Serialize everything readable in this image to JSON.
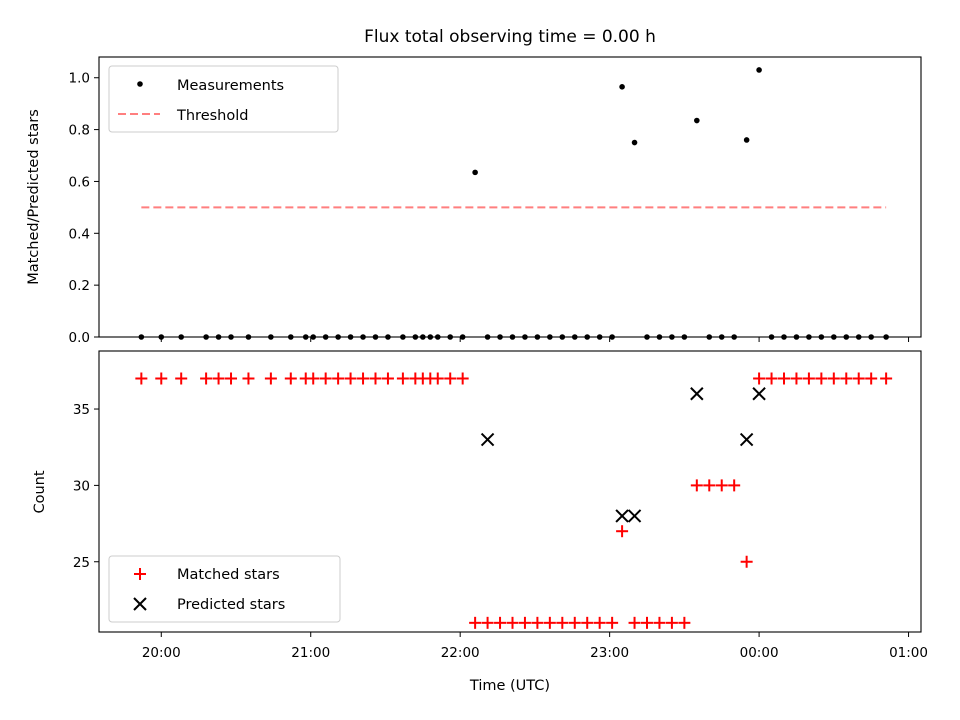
{
  "title": "Flux total observing time = 0.00 h",
  "chart_data": [
    {
      "type": "scatter",
      "ylabel": "Matched/Predicted stars",
      "ylim": [
        0.0,
        1.08
      ],
      "xlim": [
        "19:35",
        "01:05"
      ],
      "yticks": [
        {
          "value": 0.0,
          "label": "0.0"
        },
        {
          "value": 0.2,
          "label": "0.2"
        },
        {
          "value": 0.4,
          "label": "0.4"
        },
        {
          "value": 0.6,
          "label": "0.6"
        },
        {
          "value": 0.8,
          "label": "0.8"
        },
        {
          "value": 1.0,
          "label": "1.0"
        }
      ],
      "legend": {
        "placement": "upper-left",
        "entries": [
          {
            "label": "Measurements",
            "marker": "dot",
            "color": "#000000"
          },
          {
            "label": "Threshold",
            "marker": "dashed-line",
            "color": "#ff7f7f"
          }
        ]
      },
      "threshold": {
        "value": 0.5,
        "x_start": "19:52",
        "x_end": "00:51",
        "color": "#ff7f7f"
      },
      "series": [
        {
          "name": "Measurements",
          "color": "#000000",
          "points": [
            [
              "19:52",
              0
            ],
            [
              "20:00",
              0
            ],
            [
              "20:08",
              0
            ],
            [
              "20:18",
              0
            ],
            [
              "20:23",
              0
            ],
            [
              "20:28",
              0
            ],
            [
              "20:35",
              0
            ],
            [
              "20:44",
              0
            ],
            [
              "20:52",
              0
            ],
            [
              "20:58",
              0
            ],
            [
              "21:01",
              0
            ],
            [
              "21:06",
              0
            ],
            [
              "21:11",
              0
            ],
            [
              "21:16",
              0
            ],
            [
              "21:21",
              0
            ],
            [
              "21:26",
              0
            ],
            [
              "21:31",
              0
            ],
            [
              "21:37",
              0
            ],
            [
              "21:42",
              0
            ],
            [
              "21:45",
              0
            ],
            [
              "21:48",
              0
            ],
            [
              "21:51",
              0
            ],
            [
              "21:56",
              0
            ],
            [
              "22:01",
              0
            ],
            [
              "22:06",
              0.635
            ],
            [
              "22:11",
              0
            ],
            [
              "22:16",
              0
            ],
            [
              "22:21",
              0
            ],
            [
              "22:26",
              0
            ],
            [
              "22:31",
              0
            ],
            [
              "22:36",
              0
            ],
            [
              "22:41",
              0
            ],
            [
              "22:46",
              0
            ],
            [
              "22:51",
              0
            ],
            [
              "22:56",
              0
            ],
            [
              "23:01",
              0
            ],
            [
              "23:05",
              0.965
            ],
            [
              "23:10",
              0.75
            ],
            [
              "23:15",
              0
            ],
            [
              "23:20",
              0
            ],
            [
              "23:25",
              0
            ],
            [
              "23:30",
              0
            ],
            [
              "23:35",
              0.835
            ],
            [
              "23:40",
              0
            ],
            [
              "23:45",
              0
            ],
            [
              "23:50",
              0
            ],
            [
              "23:55",
              0.76
            ],
            [
              "00:00",
              1.03
            ],
            [
              "00:05",
              0
            ],
            [
              "00:10",
              0
            ],
            [
              "00:15",
              0
            ],
            [
              "00:20",
              0
            ],
            [
              "00:25",
              0
            ],
            [
              "00:30",
              0
            ],
            [
              "00:35",
              0
            ],
            [
              "00:40",
              0
            ],
            [
              "00:45",
              0
            ],
            [
              "00:51",
              0
            ]
          ]
        }
      ]
    },
    {
      "type": "scatter",
      "xlabel": "Time (UTC)",
      "ylabel": "Count",
      "ylim": [
        20.4,
        38.8
      ],
      "xlim": [
        "19:35",
        "01:05"
      ],
      "xticks": [
        {
          "value": "20:00",
          "label": "20:00"
        },
        {
          "value": "21:00",
          "label": "21:00"
        },
        {
          "value": "22:00",
          "label": "22:00"
        },
        {
          "value": "23:00",
          "label": "23:00"
        },
        {
          "value": "00:00",
          "label": "00:00"
        },
        {
          "value": "01:00",
          "label": "01:00"
        }
      ],
      "yticks": [
        {
          "value": 25,
          "label": "25"
        },
        {
          "value": 30,
          "label": "30"
        },
        {
          "value": 35,
          "label": "35"
        }
      ],
      "legend": {
        "placement": "lower-left",
        "entries": [
          {
            "label": "Matched stars",
            "marker": "plus",
            "color": "#ff0000"
          },
          {
            "label": "Predicted stars",
            "marker": "x",
            "color": "#000000"
          }
        ]
      },
      "series": [
        {
          "name": "Matched stars",
          "color": "#ff0000",
          "marker": "plus",
          "points": [
            [
              "19:52",
              37
            ],
            [
              "20:00",
              37
            ],
            [
              "20:08",
              37
            ],
            [
              "20:18",
              37
            ],
            [
              "20:23",
              37
            ],
            [
              "20:28",
              37
            ],
            [
              "20:35",
              37
            ],
            [
              "20:44",
              37
            ],
            [
              "20:52",
              37
            ],
            [
              "20:58",
              37
            ],
            [
              "21:01",
              37
            ],
            [
              "21:06",
              37
            ],
            [
              "21:11",
              37
            ],
            [
              "21:16",
              37
            ],
            [
              "21:21",
              37
            ],
            [
              "21:26",
              37
            ],
            [
              "21:31",
              37
            ],
            [
              "21:37",
              37
            ],
            [
              "21:42",
              37
            ],
            [
              "21:45",
              37
            ],
            [
              "21:48",
              37
            ],
            [
              "21:51",
              37
            ],
            [
              "21:56",
              37
            ],
            [
              "22:01",
              37
            ],
            [
              "22:06",
              21
            ],
            [
              "22:11",
              21
            ],
            [
              "22:16",
              21
            ],
            [
              "22:21",
              21
            ],
            [
              "22:26",
              21
            ],
            [
              "22:31",
              21
            ],
            [
              "22:36",
              21
            ],
            [
              "22:41",
              21
            ],
            [
              "22:46",
              21
            ],
            [
              "22:51",
              21
            ],
            [
              "22:56",
              21
            ],
            [
              "23:01",
              21
            ],
            [
              "23:05",
              27
            ],
            [
              "23:10",
              21
            ],
            [
              "23:15",
              21
            ],
            [
              "23:20",
              21
            ],
            [
              "23:25",
              21
            ],
            [
              "23:30",
              21
            ],
            [
              "23:35",
              30
            ],
            [
              "23:40",
              30
            ],
            [
              "23:45",
              30
            ],
            [
              "23:50",
              30
            ],
            [
              "23:55",
              25
            ],
            [
              "00:00",
              37
            ],
            [
              "00:05",
              37
            ],
            [
              "00:10",
              37
            ],
            [
              "00:15",
              37
            ],
            [
              "00:20",
              37
            ],
            [
              "00:25",
              37
            ],
            [
              "00:30",
              37
            ],
            [
              "00:35",
              37
            ],
            [
              "00:40",
              37
            ],
            [
              "00:45",
              37
            ],
            [
              "00:51",
              37
            ]
          ]
        },
        {
          "name": "Predicted stars",
          "color": "#000000",
          "marker": "x",
          "points": [
            [
              "22:11",
              33
            ],
            [
              "23:05",
              28
            ],
            [
              "23:10",
              28
            ],
            [
              "23:35",
              36
            ],
            [
              "23:55",
              33
            ],
            [
              "00:00",
              36
            ]
          ]
        }
      ]
    }
  ]
}
